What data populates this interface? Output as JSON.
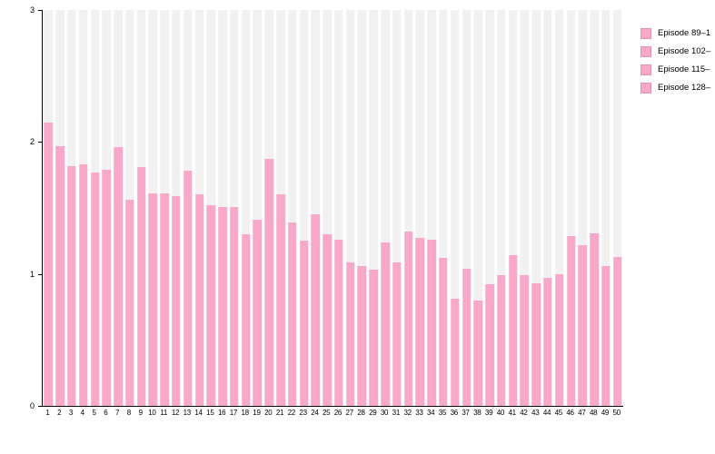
{
  "chart_data": {
    "type": "bar",
    "title": "",
    "xlabel": "",
    "ylabel": "",
    "categories": [
      "1",
      "2",
      "3",
      "4",
      "5",
      "6",
      "7",
      "8",
      "9",
      "10",
      "11",
      "12",
      "13",
      "14",
      "15",
      "16",
      "17",
      "18",
      "19",
      "20",
      "21",
      "22",
      "23",
      "24",
      "25",
      "26",
      "27",
      "28",
      "29",
      "30",
      "31",
      "32",
      "33",
      "34",
      "35",
      "36",
      "37",
      "38",
      "39",
      "40",
      "41",
      "42",
      "43",
      "44",
      "45",
      "46",
      "47",
      "48",
      "49",
      "50"
    ],
    "values": [
      2.15,
      1.97,
      1.82,
      1.83,
      1.77,
      1.79,
      1.96,
      1.56,
      1.81,
      1.61,
      1.61,
      1.59,
      1.78,
      1.6,
      1.52,
      1.51,
      1.51,
      1.3,
      1.41,
      1.87,
      1.6,
      1.39,
      1.25,
      1.45,
      1.3,
      1.26,
      1.09,
      1.06,
      1.03,
      1.24,
      1.09,
      1.32,
      1.27,
      1.26,
      1.12,
      0.81,
      1.04,
      0.8,
      0.92,
      0.99,
      1.14,
      0.99,
      0.93,
      0.97,
      1.0,
      1.29,
      1.22,
      1.31,
      1.06,
      1.13
    ],
    "ylim": [
      0,
      3
    ],
    "yticks": [
      0,
      1,
      2,
      3
    ],
    "grid": false,
    "background_tracks_full_height": true,
    "legend_position": "top-right",
    "legend": [
      {
        "label": "Episode 89–1",
        "color": "#F8A8C8"
      },
      {
        "label": "Episode 102–",
        "color": "#F8A8C8"
      },
      {
        "label": "Episode 115–",
        "color": "#F8A8C8"
      },
      {
        "label": "Episode 128–",
        "color": "#F8A8C8"
      }
    ],
    "colors": {
      "bar": "#F8A8C8",
      "track": "#F1F1F1",
      "axis": "#000000",
      "text": "#000000",
      "background": "#FFFFFF"
    }
  }
}
